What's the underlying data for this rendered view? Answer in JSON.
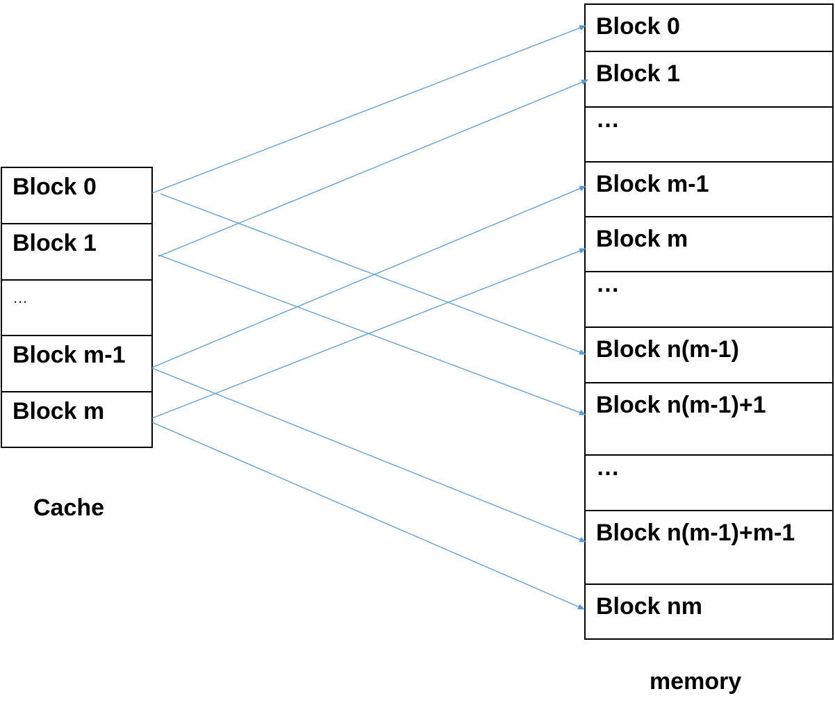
{
  "cache": {
    "caption": "Cache",
    "blocks": [
      "Block 0",
      "Block 1",
      "…",
      "Block m-1",
      "Block m"
    ]
  },
  "memory": {
    "caption": "memory",
    "blocks": [
      "Block 0",
      "Block 1",
      "…",
      "Block m-1",
      "Block m",
      "…",
      "Block n(m-1)",
      "Block n(m-1)+1",
      "…",
      "Block n(m-1)+m-1",
      "Block nm"
    ]
  },
  "mappings": [
    {
      "from": "Block 0",
      "to": "Block 0"
    },
    {
      "from": "Block 0",
      "to": "Block n(m-1)"
    },
    {
      "from": "Block 1",
      "to": "Block 1"
    },
    {
      "from": "Block 1",
      "to": "Block n(m-1)+1"
    },
    {
      "from": "Block m-1",
      "to": "Block m-1"
    },
    {
      "from": "Block m-1",
      "to": "Block n(m-1)+m-1"
    },
    {
      "from": "Block m",
      "to": "Block m"
    },
    {
      "from": "Block m",
      "to": "Block nm"
    }
  ],
  "colors": {
    "arrow": "#5b9bd5",
    "border": "#000000"
  }
}
